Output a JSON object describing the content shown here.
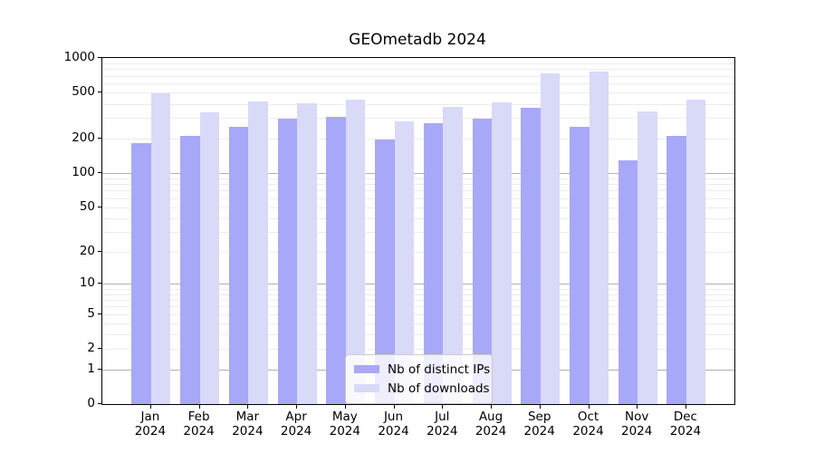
{
  "title": "GEOmetadb 2024",
  "chart_data": {
    "type": "bar",
    "title": "GEOmetadb 2024",
    "categories": [
      "Jan 2024",
      "Feb 2024",
      "Mar 2024",
      "Apr 2024",
      "May 2024",
      "Jun 2024",
      "Jul 2024",
      "Aug 2024",
      "Sep 2024",
      "Oct 2024",
      "Nov 2024",
      "Dec 2024"
    ],
    "series": [
      {
        "name": "Nb of distinct IPs",
        "color": "#a8a8f8",
        "values": [
          182,
          209,
          252,
          297,
          307,
          196,
          271,
          296,
          372,
          251,
          128,
          209
        ]
      },
      {
        "name": "Nb of downloads",
        "color": "#d9d9f8",
        "values": [
          497,
          339,
          421,
          407,
          437,
          281,
          374,
          414,
          734,
          764,
          346,
          435
        ]
      }
    ],
    "xlabel": "",
    "ylabel": "",
    "yscale": "log1p",
    "yticks": [
      0,
      1,
      2,
      5,
      10,
      20,
      50,
      100,
      200,
      500,
      1000
    ],
    "ylim": [
      0,
      1000
    ],
    "grid": "both",
    "grid_major_color": "#b0b0b0",
    "grid_minor_color": "#ececec",
    "legend_position": "lower-center"
  }
}
